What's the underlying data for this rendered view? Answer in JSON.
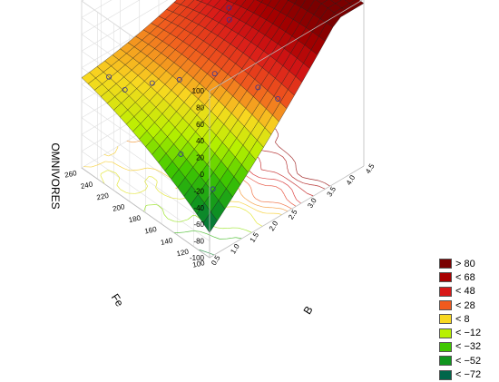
{
  "chart_data": {
    "type": "surface3d",
    "title": "",
    "zlabel": "OMNIVORES",
    "xlabel": "B",
    "ylabel": "Fe",
    "z_ticks": [
      "100",
      "80",
      "60",
      "40",
      "20",
      "0",
      "-20",
      "-40",
      "-60",
      "-80",
      "-100"
    ],
    "x_ticks": [
      "0.5",
      "1.0",
      "1.5",
      "2.0",
      "2.5",
      "3.0",
      "3.5",
      "4.0",
      "4.5"
    ],
    "y_ticks": [
      "100",
      "120",
      "140",
      "160",
      "180",
      "200",
      "220",
      "240",
      "260"
    ],
    "xlim": [
      0.5,
      4.5
    ],
    "ylim": [
      100,
      260
    ],
    "zlim": [
      -100,
      100
    ],
    "grid": true,
    "legend_position": "bottom-right",
    "legend": [
      {
        "label": "> 80",
        "color": "#7a0000"
      },
      {
        "label": "< 68",
        "color": "#a80000"
      },
      {
        "label": "< 48",
        "color": "#d81818"
      },
      {
        "label": "< 28",
        "color": "#f05a1e"
      },
      {
        "label": "< 8",
        "color": "#f8d820"
      },
      {
        "label": "< −12",
        "color": "#b8f000"
      },
      {
        "label": "< −32",
        "color": "#40c800"
      },
      {
        "label": "< −52",
        "color": "#10961e"
      },
      {
        "label": "< −72",
        "color": "#00664a"
      }
    ],
    "observations": [
      {
        "B": 1.0,
        "Fe": 250,
        "z": 2
      },
      {
        "B": 1.0,
        "Fe": 230,
        "z": 0
      },
      {
        "B": 1.5,
        "Fe": 220,
        "z": 1
      },
      {
        "B": 2.0,
        "Fe": 210,
        "z": -2
      },
      {
        "B": 2.5,
        "Fe": 190,
        "z": 5
      },
      {
        "B": 1.0,
        "Fe": 160,
        "z": -30
      },
      {
        "B": 1.0,
        "Fe": 120,
        "z": -45
      },
      {
        "B": 3.5,
        "Fe": 220,
        "z": 22
      },
      {
        "B": 3.7,
        "Fe": 230,
        "z": 24
      },
      {
        "B": 3.0,
        "Fe": 160,
        "z": -5
      },
      {
        "B": 3.1,
        "Fe": 140,
        "z": -8
      }
    ]
  }
}
